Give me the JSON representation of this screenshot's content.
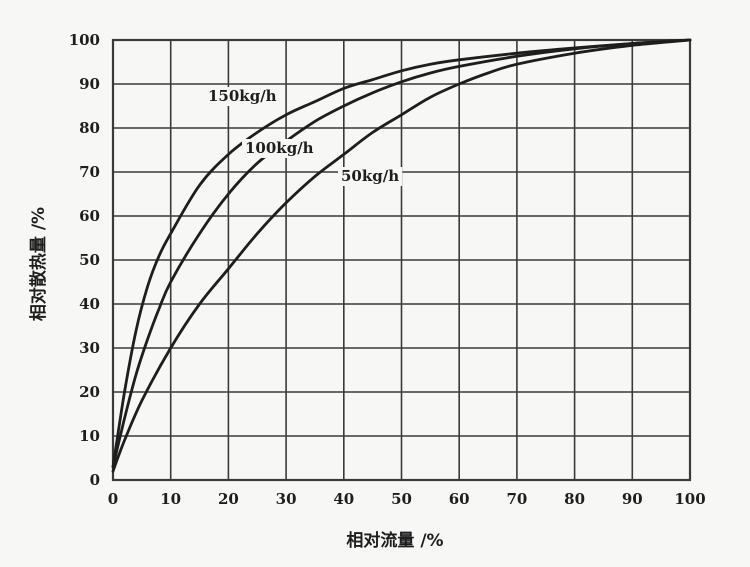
{
  "chart_data": {
    "type": "line",
    "title": "",
    "xlabel": "相对流量 /%",
    "ylabel": "相对散热量 /%",
    "xlim": [
      0,
      100
    ],
    "ylim": [
      0,
      100
    ],
    "xticks": [
      "0",
      "10",
      "20",
      "30",
      "40",
      "50",
      "60",
      "70",
      "80",
      "90",
      "100"
    ],
    "yticks": [
      "0",
      "10",
      "20",
      "30",
      "40",
      "50",
      "60",
      "70",
      "80",
      "90",
      "100"
    ],
    "grid": true,
    "colors": {
      "grid": "#3a3a3a",
      "line": "#1e1e1e",
      "background": "#f7f7f5"
    },
    "series": [
      {
        "name": "150kg/h",
        "x": [
          0,
          2,
          4,
          6,
          8,
          10,
          15,
          20,
          25,
          30,
          35,
          40,
          45,
          50,
          55,
          60,
          70,
          80,
          90,
          100
        ],
        "y": [
          3,
          20,
          34,
          44,
          51,
          56,
          67,
          74,
          79,
          83,
          86,
          89,
          91,
          93,
          94.5,
          95.5,
          97,
          98.2,
          99.2,
          100
        ]
      },
      {
        "name": "100kg/h",
        "x": [
          0,
          2,
          4,
          6,
          8,
          10,
          15,
          20,
          25,
          30,
          35,
          40,
          45,
          50,
          55,
          60,
          70,
          80,
          90,
          100
        ],
        "y": [
          3,
          14,
          24,
          32,
          39,
          45,
          56,
          65,
          72,
          77,
          81.5,
          85,
          88,
          90.5,
          92.5,
          94,
          96.3,
          98,
          99.2,
          100
        ]
      },
      {
        "name": "50kg/h",
        "x": [
          0,
          2,
          5,
          10,
          15,
          20,
          25,
          30,
          35,
          40,
          45,
          50,
          55,
          60,
          65,
          70,
          80,
          90,
          100
        ],
        "y": [
          2,
          9,
          18,
          30,
          40,
          48,
          56,
          63,
          69,
          74,
          79,
          83,
          87,
          90,
          92.5,
          94.5,
          97,
          98.8,
          100
        ]
      }
    ]
  }
}
